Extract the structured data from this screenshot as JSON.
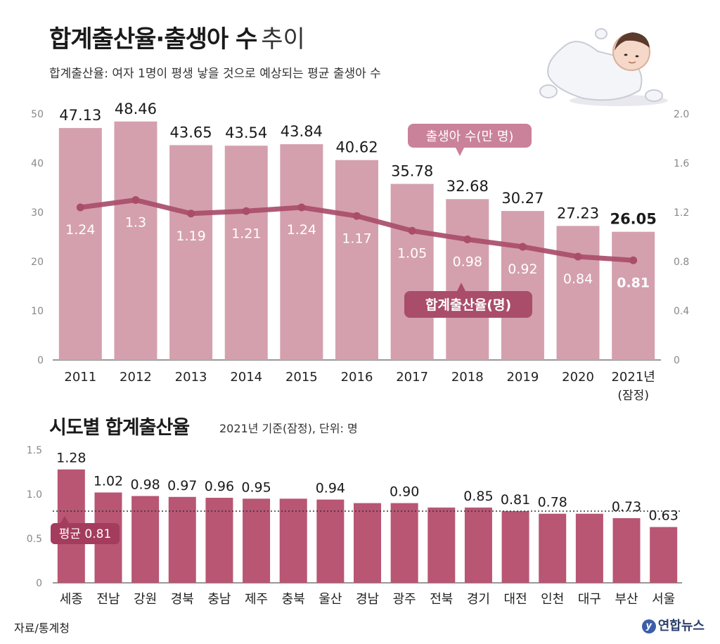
{
  "header": {
    "title_bold": "합계출산율·출생아 수",
    "title_light": "추이",
    "subtitle": "합계출산율: 여자 1명이 평생 낳을 것으로 예상되는 평균 출생아 수"
  },
  "section2": {
    "title": "시도별 합계출산율",
    "note": "2021년 기준(잠정), 단위: 명"
  },
  "footer": {
    "source": "자료/통계청",
    "logo_text": "연합뉴스"
  },
  "colors": {
    "bar_top": "#d4a0ae",
    "line_top": "#a94d6a",
    "label_box": "#c98299",
    "bar_bottom": "#b85674",
    "avg_box": "#a43c5d"
  },
  "chart_data": [
    {
      "type": "bar",
      "categories": [
        "2011",
        "2012",
        "2013",
        "2014",
        "2015",
        "2016",
        "2017",
        "2018",
        "2019",
        "2020",
        "2021년"
      ],
      "category_note": "(잠정)",
      "series": [
        {
          "name": "출생아 수(만 명)",
          "type": "bar",
          "values": [
            47.13,
            48.46,
            43.65,
            43.54,
            43.84,
            40.62,
            35.78,
            32.68,
            30.27,
            27.23,
            26.05
          ],
          "value_labels": [
            "47.13",
            "48.46",
            "43.65",
            "43.54",
            "43.84",
            "40.62",
            "35.78",
            "32.68",
            "30.27",
            "27.23",
            "26.05"
          ],
          "axis": "left"
        },
        {
          "name": "합계출산율(명)",
          "type": "line",
          "values": [
            1.24,
            1.3,
            1.19,
            1.21,
            1.24,
            1.17,
            1.05,
            0.98,
            0.92,
            0.84,
            0.81
          ],
          "value_labels": [
            "1.24",
            "1.3",
            "1.19",
            "1.21",
            "1.24",
            "1.17",
            "1.05",
            "0.98",
            "0.92",
            "0.84",
            "0.81"
          ],
          "axis": "right"
        }
      ],
      "ylim_left": [
        0,
        50
      ],
      "yticks_left": [
        "0",
        "10",
        "20",
        "30",
        "40",
        "50"
      ],
      "ylim_right": [
        0,
        2.0
      ],
      "yticks_right": [
        "0",
        "0.4",
        "0.8",
        "1.2",
        "1.6",
        "2.0"
      ]
    },
    {
      "type": "bar",
      "categories": [
        "세종",
        "전남",
        "강원",
        "경북",
        "충남",
        "제주",
        "충북",
        "울산",
        "경남",
        "광주",
        "전북",
        "경기",
        "대전",
        "인천",
        "대구",
        "부산",
        "서울"
      ],
      "values": [
        1.28,
        1.02,
        0.98,
        0.97,
        0.96,
        0.95,
        0.95,
        0.94,
        0.9,
        0.9,
        0.85,
        0.85,
        0.81,
        0.78,
        0.78,
        0.73,
        0.63
      ],
      "value_labels": [
        "1.28",
        "1.02",
        "0.98",
        "0.97",
        "0.96",
        "0.95",
        "",
        "0.94",
        "",
        "0.90",
        "",
        "0.85",
        "0.81",
        "0.78",
        "",
        "0.73",
        "0.63"
      ],
      "ylim": [
        0,
        1.5
      ],
      "yticks": [
        "0",
        "0.5",
        "1.0",
        "1.5"
      ],
      "average": {
        "label": "평균",
        "value": 0.81,
        "value_label": "0.81"
      }
    }
  ]
}
